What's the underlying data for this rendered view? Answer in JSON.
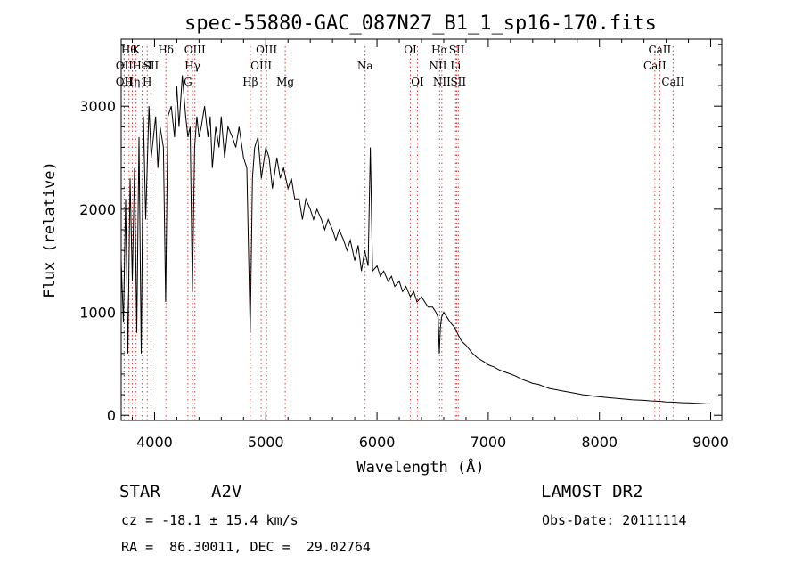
{
  "chart_data": {
    "type": "line",
    "title": "spec-55880-GAC_087N27_B1_1_sp16-170.fits",
    "xlabel": "Wavelength (Å)",
    "ylabel": "Flux (relative)",
    "xlim": [
      3700,
      9100
    ],
    "ylim": [
      -50,
      3650
    ],
    "x_ticks": [
      4000,
      5000,
      6000,
      7000,
      8000,
      9000
    ],
    "y_ticks": [
      0,
      1000,
      2000,
      3000
    ],
    "grid": false,
    "series": [
      {
        "color": "#000000",
        "x": [
          3700,
          3720,
          3740,
          3760,
          3780,
          3800,
          3820,
          3840,
          3860,
          3880,
          3900,
          3920,
          3950,
          3970,
          3990,
          4010,
          4030,
          4050,
          4080,
          4100,
          4120,
          4150,
          4180,
          4200,
          4220,
          4250,
          4280,
          4300,
          4320,
          4340,
          4360,
          4380,
          4400,
          4420,
          4450,
          4480,
          4500,
          4520,
          4550,
          4580,
          4600,
          4630,
          4660,
          4700,
          4730,
          4760,
          4800,
          4830,
          4860,
          4880,
          4900,
          4930,
          4960,
          5000,
          5030,
          5060,
          5100,
          5130,
          5160,
          5200,
          5230,
          5260,
          5300,
          5330,
          5360,
          5400,
          5430,
          5460,
          5500,
          5530,
          5560,
          5600,
          5630,
          5660,
          5700,
          5730,
          5760,
          5800,
          5830,
          5860,
          5890,
          5920,
          5940,
          5960,
          6000,
          6030,
          6060,
          6100,
          6130,
          6160,
          6200,
          6230,
          6260,
          6300,
          6330,
          6360,
          6400,
          6430,
          6460,
          6500,
          6530,
          6550,
          6560,
          6570,
          6580,
          6600,
          6630,
          6660,
          6700,
          6730,
          6760,
          6800,
          6830,
          6860,
          6900,
          6930,
          6960,
          7000,
          7050,
          7100,
          7150,
          7200,
          7250,
          7300,
          7350,
          7400,
          7450,
          7500,
          7550,
          7600,
          7650,
          7700,
          7750,
          7800,
          7850,
          7900,
          7950,
          8000,
          8050,
          8100,
          8150,
          8200,
          8250,
          8300,
          8350,
          8400,
          8450,
          8500,
          8550,
          8600,
          8650,
          8700,
          8750,
          8800,
          8850,
          8900,
          8950,
          9000
        ],
        "y": [
          1500,
          900,
          2100,
          600,
          2300,
          1300,
          2400,
          800,
          2700,
          600,
          2900,
          1900,
          3000,
          2500,
          2700,
          2900,
          2400,
          2800,
          2600,
          1100,
          2900,
          3000,
          2700,
          3200,
          2800,
          3300,
          2900,
          2700,
          2800,
          1200,
          2600,
          2900,
          2700,
          2800,
          3000,
          2700,
          2900,
          2400,
          2800,
          2600,
          2900,
          2500,
          2800,
          2700,
          2600,
          2800,
          2500,
          2400,
          800,
          2300,
          2600,
          2700,
          2300,
          2600,
          2500,
          2200,
          2500,
          2300,
          2400,
          2200,
          2300,
          2100,
          2100,
          1900,
          2100,
          2000,
          1900,
          2000,
          1900,
          1800,
          1900,
          1800,
          1700,
          1800,
          1700,
          1600,
          1700,
          1500,
          1650,
          1400,
          1600,
          1450,
          2600,
          1400,
          1450,
          1350,
          1400,
          1300,
          1350,
          1250,
          1300,
          1200,
          1250,
          1150,
          1200,
          1100,
          1150,
          1100,
          1050,
          1050,
          1000,
          950,
          600,
          850,
          950,
          1000,
          950,
          900,
          850,
          780,
          720,
          680,
          640,
          600,
          560,
          540,
          520,
          490,
          470,
          440,
          420,
          400,
          380,
          350,
          330,
          310,
          300,
          280,
          260,
          250,
          240,
          230,
          220,
          210,
          200,
          195,
          185,
          180,
          175,
          170,
          165,
          160,
          155,
          150,
          148,
          145,
          140,
          138,
          135,
          130,
          128,
          125,
          122,
          120,
          118,
          115,
          112,
          110
        ]
      }
    ],
    "line_markers": [
      {
        "wl": 3727,
        "label": "OII",
        "tier": 1
      },
      {
        "wl": 3727,
        "label": "OII",
        "tier": 2
      },
      {
        "wl": 3770,
        "label": "Hθ",
        "tier": 0
      },
      {
        "wl": 3800,
        "label": "Hη",
        "tier": 2
      },
      {
        "wl": 3834,
        "label": "K",
        "tier": 0
      },
      {
        "wl": 3889,
        "label": "HeI",
        "tier": 1
      },
      {
        "wl": 3934,
        "label": "H",
        "tier": 2
      },
      {
        "wl": 3968,
        "label": "SII",
        "tier": 1
      },
      {
        "wl": 4102,
        "label": "Hδ",
        "tier": 0
      },
      {
        "wl": 4300,
        "label": "G",
        "tier": 2
      },
      {
        "wl": 4341,
        "label": "Hγ",
        "tier": 1
      },
      {
        "wl": 4363,
        "label": "OIII",
        "tier": 0
      },
      {
        "wl": 4861,
        "label": "Hβ",
        "tier": 2
      },
      {
        "wl": 4959,
        "label": "OIII",
        "tier": 1
      },
      {
        "wl": 5007,
        "label": "OIII",
        "tier": 0
      },
      {
        "wl": 5175,
        "label": "Mg",
        "tier": 2
      },
      {
        "wl": 5893,
        "label": "Na",
        "tier": 1
      },
      {
        "wl": 6300,
        "label": "OI",
        "tier": 0
      },
      {
        "wl": 6364,
        "label": "OI",
        "tier": 2
      },
      {
        "wl": 6548,
        "label": "NII",
        "tier": 1
      },
      {
        "wl": 6563,
        "label": "Hα",
        "tier": 0
      },
      {
        "wl": 6583,
        "label": "NII",
        "tier": 2
      },
      {
        "wl": 6707,
        "label": "Li",
        "tier": 1
      },
      {
        "wl": 6717,
        "label": "SII",
        "tier": 0
      },
      {
        "wl": 6731,
        "label": "SII",
        "tier": 2
      },
      {
        "wl": 8498,
        "label": "CaII",
        "tier": 1
      },
      {
        "wl": 8542,
        "label": "CaII",
        "tier": 0
      },
      {
        "wl": 8662,
        "label": "CaII",
        "tier": 2
      }
    ]
  },
  "info": {
    "class_label": "STAR",
    "subclass": "A2V",
    "survey": "LAMOST DR2",
    "redshift": "cz = -18.1 ± 15.4 km/s",
    "obs_date": "Obs-Date: 20111114",
    "coords": "RA =  86.30011, DEC =  29.02764"
  }
}
